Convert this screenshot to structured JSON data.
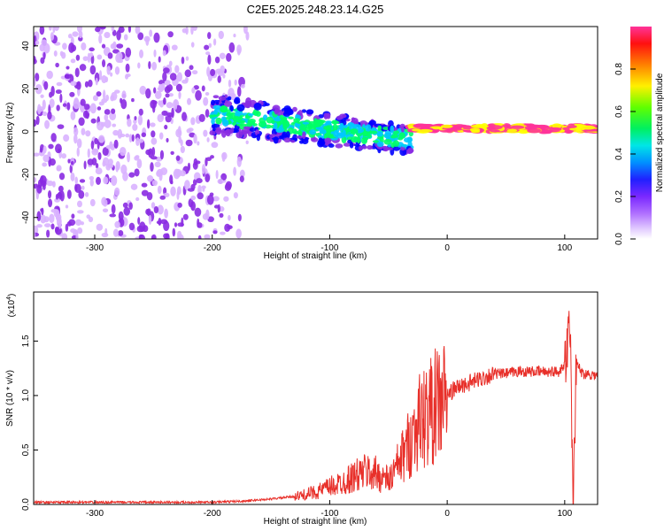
{
  "figure": {
    "title": "C2E5.2025.248.23.14.G25"
  },
  "chart_data": [
    {
      "type": "heatmap",
      "xlabel": "Height of straight line (km)",
      "ylabel": "Frequency (Hz)",
      "xlim": [
        -352,
        128
      ],
      "ylim": [
        -50,
        49
      ],
      "xticks": [
        -300,
        -200,
        -100,
        0,
        100
      ],
      "yticks": [
        -40,
        -20,
        0,
        20,
        40
      ],
      "grid": false,
      "colorbar": {
        "label": "Normalized spectral amplitude",
        "range": [
          0,
          1
        ],
        "ticks": [
          0.0,
          0.2,
          0.4,
          0.6,
          0.8
        ],
        "colors": [
          "#ffffff",
          "#d9b3ff",
          "#8a2be2",
          "#0000ff",
          "#00c8ff",
          "#00ff66",
          "#ffff00",
          "#ff8000",
          "#ff0000",
          "#ff3399"
        ]
      },
      "regions": [
        {
          "x": [
            -352,
            -170
          ],
          "freq": [
            -50,
            49
          ],
          "amplitude": 0.15,
          "pattern": "scattered noise"
        },
        {
          "x": [
            -200,
            -30
          ],
          "freq": [
            -12,
            12
          ],
          "amplitude": 0.45,
          "pattern": "central band"
        },
        {
          "x": [
            -30,
            128
          ],
          "freq": [
            -2,
            3
          ],
          "amplitude": 0.95,
          "pattern": "narrow carrier"
        }
      ]
    },
    {
      "type": "line",
      "xlabel": "Height of straight line (km)",
      "ylabel": "SNR (10 * v/v)",
      "ylabel_scale": "(x10",
      "ylabel_exponent": "4",
      "ylabel_scale_close": ")",
      "xlim": [
        -352,
        128
      ],
      "ylim": [
        0,
        1.95
      ],
      "xticks": [
        -300,
        -200,
        -100,
        0,
        100
      ],
      "yticks": [
        0.0,
        0.5,
        1.0,
        1.5
      ],
      "grid": false,
      "series": [
        {
          "color": "#e8302a",
          "x": [
            -352,
            -300,
            -250,
            -200,
            -175,
            -150,
            -125,
            -110,
            -100,
            -90,
            -80,
            -70,
            -60,
            -50,
            -45,
            -40,
            -35,
            -30,
            -25,
            -20,
            -15,
            -10,
            -5,
            0,
            5,
            10,
            20,
            30,
            40,
            50,
            60,
            70,
            80,
            90,
            95,
            100,
            103,
            105,
            107,
            110,
            115,
            120,
            128
          ],
          "y": [
            0.02,
            0.02,
            0.02,
            0.02,
            0.03,
            0.05,
            0.08,
            0.12,
            0.16,
            0.2,
            0.25,
            0.3,
            0.28,
            0.22,
            0.3,
            0.4,
            0.5,
            0.62,
            0.75,
            0.8,
            0.85,
            0.9,
            0.95,
            1.0,
            1.05,
            1.08,
            1.12,
            1.16,
            1.2,
            1.2,
            1.22,
            1.22,
            1.22,
            1.22,
            1.22,
            1.3,
            1.45,
            1.6,
            0.1,
            1.3,
            1.2,
            1.2,
            1.18
          ]
        }
      ]
    }
  ]
}
